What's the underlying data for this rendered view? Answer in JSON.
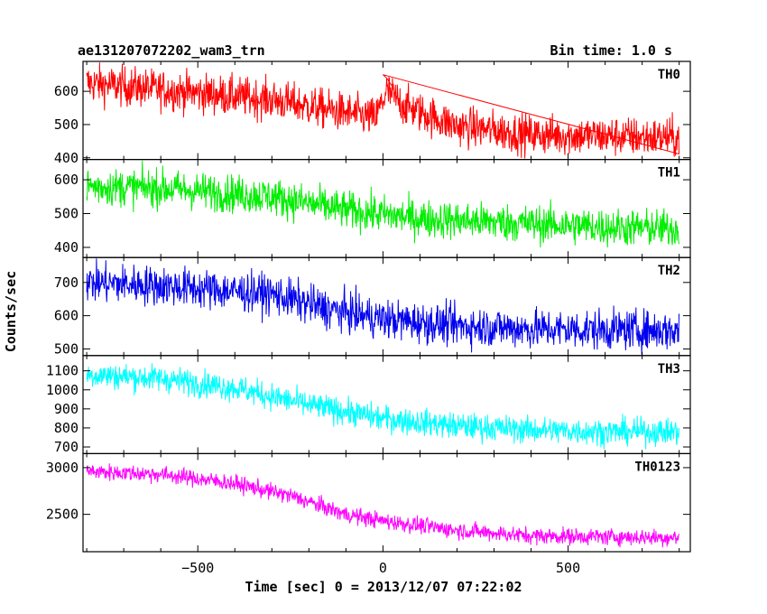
{
  "chart_data": {
    "type": "line",
    "title_left": "ae131207072202_wam3_trn",
    "title_right": "Bin time: 1.0 s",
    "xlabel": "Time [sec] 0 = 2013/12/07 07:22:02",
    "ylabel": "Counts/sec",
    "xlim": [
      -810,
      830
    ],
    "x_ticks": [
      -500,
      0,
      500
    ],
    "x_tick_labels": [
      "−500",
      "0",
      "500"
    ],
    "data_x_range": [
      -800,
      800
    ],
    "panels": [
      {
        "name": "TH0",
        "color": "#ff0000",
        "ylim": [
          395,
          690
        ],
        "yticks": [
          400,
          500,
          600
        ],
        "trend": [
          [
            -800,
            625
          ],
          [
            -600,
            605
          ],
          [
            -300,
            575
          ],
          [
            -100,
            535
          ],
          [
            -20,
            520
          ],
          [
            10,
            600
          ],
          [
            60,
            555
          ],
          [
            200,
            495
          ],
          [
            400,
            470
          ],
          [
            600,
            465
          ],
          [
            800,
            460
          ]
        ],
        "noise": 30,
        "spikes": [
          [
            0,
            650
          ],
          [
            10,
            640
          ],
          [
            25,
            615
          ]
        ]
      },
      {
        "name": "TH1",
        "color": "#00ee00",
        "ylim": [
          370,
          660
        ],
        "yticks": [
          400,
          500,
          600
        ],
        "trend": [
          [
            -800,
            580
          ],
          [
            -600,
            575
          ],
          [
            -300,
            550
          ],
          [
            -100,
            510
          ],
          [
            100,
            485
          ],
          [
            400,
            470
          ],
          [
            600,
            460
          ],
          [
            800,
            455
          ]
        ],
        "noise": 28,
        "spikes": []
      },
      {
        "name": "TH2",
        "color": "#0000ee",
        "ylim": [
          480,
          775
        ],
        "yticks": [
          500,
          600,
          700
        ],
        "trend": [
          [
            -800,
            700
          ],
          [
            -600,
            690
          ],
          [
            -300,
            665
          ],
          [
            -150,
            620
          ],
          [
            0,
            590
          ],
          [
            200,
            570
          ],
          [
            400,
            560
          ],
          [
            800,
            555
          ]
        ],
        "noise": 30,
        "spikes": []
      },
      {
        "name": "TH3",
        "color": "#00ffff",
        "ylim": [
          665,
          1180
        ],
        "yticks": [
          700,
          800,
          900,
          1000,
          1100
        ],
        "trend": [
          [
            -800,
            1080
          ],
          [
            -600,
            1060
          ],
          [
            -400,
            1010
          ],
          [
            -200,
            920
          ],
          [
            0,
            850
          ],
          [
            200,
            810
          ],
          [
            400,
            790
          ],
          [
            600,
            780
          ],
          [
            800,
            780
          ]
        ],
        "noise": 35,
        "spikes": []
      },
      {
        "name": "TH0123",
        "color": "#ff00ff",
        "ylim": [
          2100,
          3150
        ],
        "yticks": [
          2500,
          3000
        ],
        "trend": [
          [
            -800,
            2960
          ],
          [
            -600,
            2930
          ],
          [
            -400,
            2830
          ],
          [
            -250,
            2700
          ],
          [
            -100,
            2500
          ],
          [
            0,
            2430
          ],
          [
            200,
            2330
          ],
          [
            400,
            2270
          ],
          [
            800,
            2250
          ]
        ],
        "noise": 45,
        "spikes": []
      }
    ]
  }
}
